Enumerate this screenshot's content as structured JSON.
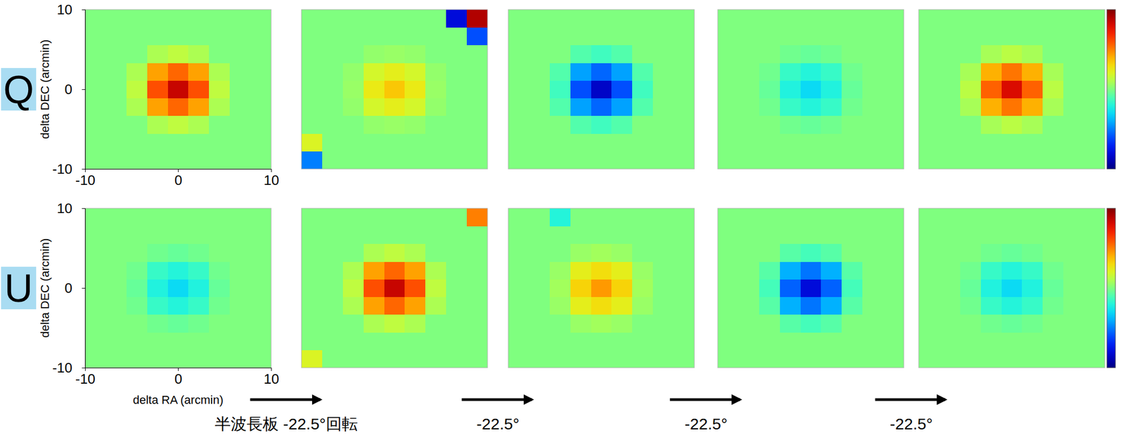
{
  "chart_data": [
    {
      "type": "heatmap",
      "title": "Q",
      "y_label": "delta DEC (arcmin)",
      "xlim": [
        -10,
        10
      ],
      "ylim": [
        -10,
        10
      ],
      "xticks": [
        -10,
        0,
        10
      ],
      "yticks": [
        -10,
        0,
        10
      ],
      "zlim": [
        -1,
        1
      ],
      "x": [
        -8.89,
        -6.67,
        -4.44,
        -2.22,
        0,
        2.22,
        4.44,
        6.67,
        8.89
      ],
      "y": [
        -8.89,
        -6.67,
        -4.44,
        -2.22,
        0,
        2.22,
        4.44,
        6.67,
        8.89
      ],
      "z": [
        [
          0,
          0,
          0,
          0,
          0,
          0,
          0,
          0,
          0
        ],
        [
          0,
          0,
          0,
          0,
          0,
          0,
          0,
          0,
          0
        ],
        [
          0,
          0,
          0,
          0.09,
          0.13,
          0.09,
          0,
          0,
          0
        ],
        [
          0,
          0,
          0.09,
          0.43,
          0.55,
          0.43,
          0.09,
          0,
          0
        ],
        [
          0,
          0,
          0.13,
          0.6,
          0.85,
          0.6,
          0.13,
          0,
          0
        ],
        [
          0,
          0,
          0.09,
          0.43,
          0.55,
          0.43,
          0.09,
          0,
          0
        ],
        [
          0,
          0,
          0,
          0.09,
          0.13,
          0.09,
          0,
          0,
          0
        ],
        [
          0,
          0,
          0,
          0,
          0,
          0,
          0,
          0,
          0
        ],
        [
          0,
          0,
          0,
          0,
          0,
          0,
          0,
          0,
          0
        ]
      ]
    },
    {
      "type": "heatmap",
      "tick_labels": false,
      "xlim": [
        -10,
        10
      ],
      "ylim": [
        -10,
        10
      ],
      "zlim": [
        -1,
        1
      ],
      "x": [
        -8.89,
        -6.67,
        -4.44,
        -2.22,
        0,
        2.22,
        4.44,
        6.67,
        8.89
      ],
      "y": [
        -8.89,
        -6.67,
        -4.44,
        -2.22,
        0,
        2.22,
        4.44,
        6.67,
        8.89
      ],
      "z": [
        [
          -0.5,
          0,
          0,
          0,
          0,
          0,
          0,
          0,
          0
        ],
        [
          0.2,
          0,
          0,
          0,
          0,
          0,
          0,
          0,
          0
        ],
        [
          0,
          0,
          0,
          0.04,
          0.05,
          0.04,
          0,
          0,
          0
        ],
        [
          0,
          0,
          0.04,
          0.18,
          0.23,
          0.18,
          0.04,
          0,
          0
        ],
        [
          0,
          0,
          0.05,
          0.25,
          0.35,
          0.25,
          0.05,
          0,
          0
        ],
        [
          0,
          0,
          0.04,
          0.18,
          0.23,
          0.18,
          0.04,
          0,
          0
        ],
        [
          0,
          0,
          0,
          0.04,
          0.05,
          0.04,
          0,
          0,
          0
        ],
        [
          0,
          0,
          0,
          0,
          0,
          0,
          0,
          0,
          -0.6
        ],
        [
          0,
          0,
          0,
          0,
          0,
          0,
          0,
          -0.8,
          0.9
        ]
      ]
    },
    {
      "type": "heatmap",
      "tick_labels": false,
      "xlim": [
        -10,
        10
      ],
      "ylim": [
        -10,
        10
      ],
      "zlim": [
        -1,
        1
      ],
      "x": [
        -8.89,
        -6.67,
        -4.44,
        -2.22,
        0,
        2.22,
        4.44,
        6.67,
        8.89
      ],
      "y": [
        -8.89,
        -6.67,
        -4.44,
        -2.22,
        0,
        2.22,
        4.44,
        6.67,
        8.89
      ],
      "z": [
        [
          0,
          0,
          0,
          0,
          0,
          0,
          0,
          0,
          0
        ],
        [
          0,
          0,
          0,
          0,
          0,
          0,
          0,
          0,
          0
        ],
        [
          0,
          0,
          0,
          -0.09,
          -0.13,
          -0.09,
          0,
          0,
          0
        ],
        [
          0,
          0,
          -0.09,
          -0.43,
          -0.55,
          -0.43,
          -0.09,
          0,
          0
        ],
        [
          0,
          0,
          -0.13,
          -0.6,
          -0.85,
          -0.6,
          -0.13,
          0,
          0
        ],
        [
          0,
          0,
          -0.09,
          -0.43,
          -0.55,
          -0.43,
          -0.09,
          0,
          0
        ],
        [
          0,
          0,
          0,
          -0.09,
          -0.13,
          -0.09,
          0,
          0,
          0
        ],
        [
          0,
          0,
          0,
          0,
          0,
          0,
          0,
          0,
          0
        ],
        [
          0,
          0,
          0,
          0,
          0,
          0,
          0,
          0,
          0
        ]
      ]
    },
    {
      "type": "heatmap",
      "tick_labels": false,
      "xlim": [
        -10,
        10
      ],
      "ylim": [
        -10,
        10
      ],
      "zlim": [
        -1,
        1
      ],
      "x": [
        -8.89,
        -6.67,
        -4.44,
        -2.22,
        0,
        2.22,
        4.44,
        6.67,
        8.89
      ],
      "y": [
        -8.89,
        -6.67,
        -4.44,
        -2.22,
        0,
        2.22,
        4.44,
        6.67,
        8.89
      ],
      "z": [
        [
          0,
          0,
          0,
          0,
          0,
          0,
          0,
          0,
          0
        ],
        [
          0,
          0,
          0,
          0,
          0,
          0,
          0,
          0,
          0
        ],
        [
          0,
          0,
          0,
          -0.03,
          -0.05,
          -0.03,
          0,
          0,
          0
        ],
        [
          0,
          0,
          -0.03,
          -0.15,
          -0.2,
          -0.15,
          -0.03,
          0,
          0
        ],
        [
          0,
          0,
          -0.05,
          -0.21,
          -0.3,
          -0.21,
          -0.05,
          0,
          0
        ],
        [
          0,
          0,
          -0.03,
          -0.15,
          -0.2,
          -0.15,
          -0.03,
          0,
          0
        ],
        [
          0,
          0,
          0,
          -0.03,
          -0.05,
          -0.03,
          0,
          0,
          0
        ],
        [
          0,
          0,
          0,
          0,
          0,
          0,
          0,
          0,
          0
        ],
        [
          0,
          0,
          0,
          0,
          0,
          0,
          0,
          0,
          0
        ]
      ]
    },
    {
      "type": "heatmap",
      "tick_labels": false,
      "xlim": [
        -10,
        10
      ],
      "ylim": [
        -10,
        10
      ],
      "zlim": [
        -1,
        1
      ],
      "x": [
        -8.89,
        -6.67,
        -4.44,
        -2.22,
        0,
        2.22,
        4.44,
        6.67,
        8.89
      ],
      "y": [
        -8.89,
        -6.67,
        -4.44,
        -2.22,
        0,
        2.22,
        4.44,
        6.67,
        8.89
      ],
      "z": [
        [
          0,
          0,
          0,
          0,
          0,
          0,
          0,
          0,
          0
        ],
        [
          0,
          0,
          0,
          0,
          0,
          0,
          0,
          0,
          0
        ],
        [
          0,
          0,
          0,
          0.08,
          0.12,
          0.08,
          0,
          0,
          0
        ],
        [
          0,
          0,
          0.08,
          0.4,
          0.52,
          0.4,
          0.08,
          0,
          0
        ],
        [
          0,
          0,
          0.12,
          0.56,
          0.8,
          0.56,
          0.12,
          0,
          0
        ],
        [
          0,
          0,
          0.08,
          0.4,
          0.52,
          0.4,
          0.08,
          0,
          0
        ],
        [
          0,
          0,
          0,
          0.08,
          0.12,
          0.08,
          0,
          0,
          0
        ],
        [
          0,
          0,
          0,
          0,
          0,
          0,
          0,
          0,
          0
        ],
        [
          0,
          0,
          0,
          0,
          0,
          0,
          0,
          0,
          0
        ]
      ]
    },
    {
      "type": "heatmap",
      "title": "U",
      "x_label": "delta RA (arcmin)",
      "y_label": "delta DEC (arcmin)",
      "xlim": [
        -10,
        10
      ],
      "ylim": [
        -10,
        10
      ],
      "xticks": [
        -10,
        0,
        10
      ],
      "yticks": [
        -10,
        0,
        10
      ],
      "zlim": [
        -1,
        1
      ],
      "x": [
        -8.89,
        -6.67,
        -4.44,
        -2.22,
        0,
        2.22,
        4.44,
        6.67,
        8.89
      ],
      "y": [
        -8.89,
        -6.67,
        -4.44,
        -2.22,
        0,
        2.22,
        4.44,
        6.67,
        8.89
      ],
      "z": [
        [
          0,
          0,
          0,
          0,
          0,
          0,
          0,
          0,
          0
        ],
        [
          0,
          0,
          0,
          0,
          0,
          0,
          0,
          0,
          0
        ],
        [
          0,
          0,
          0,
          -0.03,
          -0.05,
          -0.03,
          0,
          0,
          0
        ],
        [
          0,
          0,
          -0.03,
          -0.15,
          -0.2,
          -0.15,
          -0.03,
          0,
          0
        ],
        [
          0,
          0,
          -0.05,
          -0.21,
          -0.3,
          -0.21,
          -0.05,
          0,
          0
        ],
        [
          0,
          0,
          -0.03,
          -0.15,
          -0.2,
          -0.15,
          -0.03,
          0,
          0
        ],
        [
          0,
          0,
          0,
          -0.03,
          -0.05,
          -0.03,
          0,
          0,
          0
        ],
        [
          0,
          0,
          0,
          0,
          0,
          0,
          0,
          0,
          0
        ],
        [
          0,
          0,
          0,
          0,
          0,
          0,
          0,
          0,
          0
        ]
      ]
    },
    {
      "type": "heatmap",
      "tick_labels": false,
      "xlim": [
        -10,
        10
      ],
      "ylim": [
        -10,
        10
      ],
      "zlim": [
        -1,
        1
      ],
      "x": [
        -8.89,
        -6.67,
        -4.44,
        -2.22,
        0,
        2.22,
        4.44,
        6.67,
        8.89
      ],
      "y": [
        -8.89,
        -6.67,
        -4.44,
        -2.22,
        0,
        2.22,
        4.44,
        6.67,
        8.89
      ],
      "z": [
        [
          0.2,
          0,
          0,
          0,
          0,
          0,
          0,
          0,
          0
        ],
        [
          0,
          0,
          0,
          0,
          0,
          0,
          0,
          0,
          0
        ],
        [
          0,
          0,
          0,
          0.09,
          0.13,
          0.09,
          0,
          0,
          0
        ],
        [
          0,
          0,
          0.09,
          0.43,
          0.55,
          0.43,
          0.09,
          0,
          0
        ],
        [
          0,
          0,
          0.13,
          0.6,
          0.85,
          0.6,
          0.13,
          0,
          0
        ],
        [
          0,
          0,
          0.09,
          0.43,
          0.55,
          0.43,
          0.09,
          0,
          0
        ],
        [
          0,
          0,
          0,
          0.09,
          0.13,
          0.09,
          0,
          0,
          0
        ],
        [
          0,
          0,
          0,
          0,
          0,
          0,
          0,
          0,
          0
        ],
        [
          0,
          0,
          0,
          0,
          0,
          0,
          0,
          0,
          0.5
        ]
      ]
    },
    {
      "type": "heatmap",
      "tick_labels": false,
      "xlim": [
        -10,
        10
      ],
      "ylim": [
        -10,
        10
      ],
      "zlim": [
        -1,
        1
      ],
      "x": [
        -8.89,
        -6.67,
        -4.44,
        -2.22,
        0,
        2.22,
        4.44,
        6.67,
        8.89
      ],
      "y": [
        -8.89,
        -6.67,
        -4.44,
        -2.22,
        0,
        2.22,
        4.44,
        6.67,
        8.89
      ],
      "z": [
        [
          0,
          0,
          0,
          0,
          0,
          0,
          0,
          0,
          0
        ],
        [
          0,
          0,
          0,
          0,
          0,
          0,
          0,
          0,
          0
        ],
        [
          0,
          0,
          0,
          0.05,
          0.07,
          0.05,
          0,
          0,
          0
        ],
        [
          0,
          0,
          0.05,
          0.23,
          0.29,
          0.23,
          0.05,
          0,
          0
        ],
        [
          0,
          0,
          0.07,
          0.32,
          0.45,
          0.32,
          0.07,
          0,
          0
        ],
        [
          0,
          0,
          0.05,
          0.23,
          0.29,
          0.23,
          0.05,
          0,
          0
        ],
        [
          0,
          0,
          0,
          0.05,
          0.07,
          0.05,
          0,
          0,
          0
        ],
        [
          0,
          0,
          0,
          0,
          0,
          0,
          0,
          0,
          0
        ],
        [
          0,
          0,
          -0.2,
          0,
          0,
          0,
          0,
          0,
          0
        ]
      ]
    },
    {
      "type": "heatmap",
      "tick_labels": false,
      "xlim": [
        -10,
        10
      ],
      "ylim": [
        -10,
        10
      ],
      "zlim": [
        -1,
        1
      ],
      "x": [
        -8.89,
        -6.67,
        -4.44,
        -2.22,
        0,
        2.22,
        4.44,
        6.67,
        8.89
      ],
      "y": [
        -8.89,
        -6.67,
        -4.44,
        -2.22,
        0,
        2.22,
        4.44,
        6.67,
        8.89
      ],
      "z": [
        [
          0,
          0,
          0,
          0,
          0,
          0,
          0,
          0,
          0
        ],
        [
          0,
          0,
          0,
          0,
          0,
          0,
          0,
          0,
          0
        ],
        [
          0,
          0,
          0,
          -0.08,
          -0.12,
          -0.08,
          0,
          0,
          0
        ],
        [
          0,
          0,
          -0.08,
          -0.4,
          -0.52,
          -0.4,
          -0.08,
          0,
          0
        ],
        [
          0,
          0,
          -0.12,
          -0.56,
          -0.8,
          -0.56,
          -0.12,
          0,
          0
        ],
        [
          0,
          0,
          -0.08,
          -0.4,
          -0.52,
          -0.4,
          -0.08,
          0,
          0
        ],
        [
          0,
          0,
          0,
          -0.08,
          -0.12,
          -0.08,
          0,
          0,
          0
        ],
        [
          0,
          0,
          0,
          0,
          0,
          0,
          0,
          0,
          0
        ],
        [
          0,
          0,
          0,
          0,
          0,
          0,
          0,
          0,
          0
        ]
      ]
    },
    {
      "type": "heatmap",
      "tick_labels": false,
      "xlim": [
        -10,
        10
      ],
      "ylim": [
        -10,
        10
      ],
      "zlim": [
        -1,
        1
      ],
      "x": [
        -8.89,
        -6.67,
        -4.44,
        -2.22,
        0,
        2.22,
        4.44,
        6.67,
        8.89
      ],
      "y": [
        -8.89,
        -6.67,
        -4.44,
        -2.22,
        0,
        2.22,
        4.44,
        6.67,
        8.89
      ],
      "z": [
        [
          0,
          0,
          0,
          0,
          0,
          0,
          0,
          0,
          0
        ],
        [
          0,
          0,
          0,
          0,
          0,
          0,
          0,
          0,
          0
        ],
        [
          0,
          0,
          0,
          -0.03,
          -0.05,
          -0.03,
          0,
          0,
          0
        ],
        [
          0,
          0,
          -0.03,
          -0.15,
          -0.2,
          -0.15,
          -0.03,
          0,
          0
        ],
        [
          0,
          0,
          -0.05,
          -0.21,
          -0.3,
          -0.21,
          -0.05,
          0,
          0
        ],
        [
          0,
          0,
          -0.03,
          -0.15,
          -0.2,
          -0.15,
          -0.03,
          0,
          0
        ],
        [
          0,
          0,
          0,
          -0.03,
          -0.05,
          -0.03,
          0,
          0,
          0
        ],
        [
          0,
          0,
          0,
          0,
          0,
          0,
          0,
          0,
          0
        ],
        [
          0,
          0,
          0,
          0,
          0,
          0,
          0,
          0,
          0
        ]
      ]
    }
  ],
  "annotations": [
    "半波長板 -22.5°回転",
    "-22.5°",
    "-22.5°",
    "-22.5°"
  ]
}
